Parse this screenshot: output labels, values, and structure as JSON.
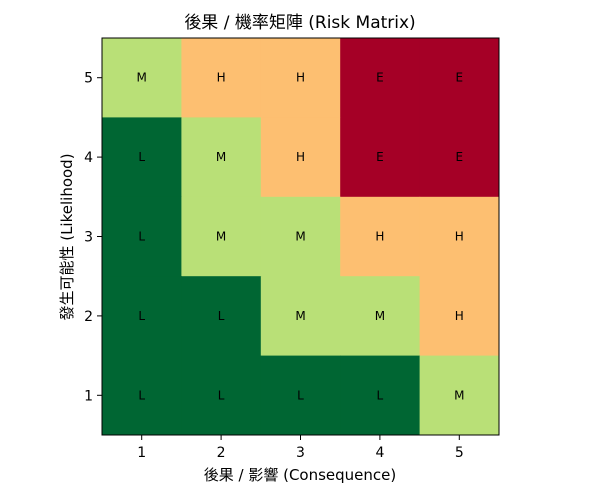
{
  "chart_data": {
    "type": "heatmap",
    "title": "後果 / 機率矩陣 (Risk Matrix)",
    "xlabel": "後果 / 影響 (Consequence)",
    "ylabel": "發生可能性 (Likelihood)",
    "x_ticks": [
      "1",
      "2",
      "3",
      "4",
      "5"
    ],
    "y_ticks": [
      "1",
      "2",
      "3",
      "4",
      "5"
    ],
    "xlim": [
      0.5,
      5.5
    ],
    "ylim": [
      0.5,
      5.5
    ],
    "level_colors": {
      "L": "#006633",
      "M": "#b9e077",
      "H": "#fdbf71",
      "E": "#a50026"
    },
    "rows": [
      {
        "likelihood": 5,
        "cells": [
          "M",
          "H",
          "H",
          "E",
          "E"
        ]
      },
      {
        "likelihood": 4,
        "cells": [
          "L",
          "M",
          "H",
          "E",
          "E"
        ]
      },
      {
        "likelihood": 3,
        "cells": [
          "L",
          "M",
          "M",
          "H",
          "H"
        ]
      },
      {
        "likelihood": 2,
        "cells": [
          "L",
          "L",
          "M",
          "M",
          "H"
        ]
      },
      {
        "likelihood": 1,
        "cells": [
          "L",
          "L",
          "L",
          "L",
          "M"
        ]
      }
    ]
  }
}
